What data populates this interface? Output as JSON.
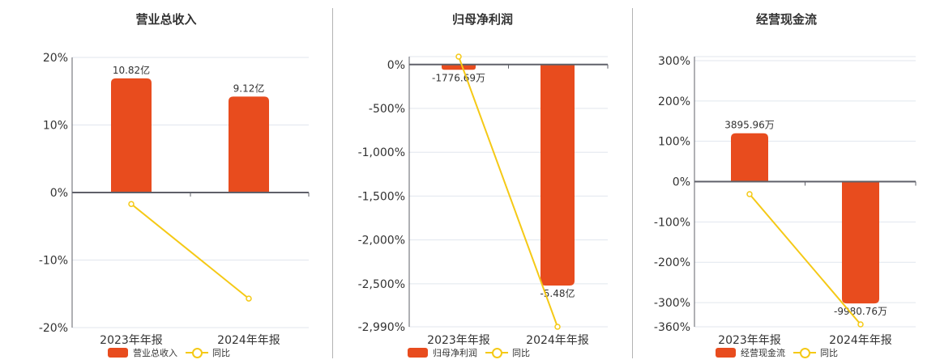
{
  "colors": {
    "bar": "#e84c1e",
    "line": "#f5c916",
    "grid": "#e1e6ee",
    "axis": "#5f6069",
    "divider": "#b3b3b3"
  },
  "legend_line_label": "同比",
  "chart_data": [
    {
      "type": "bar+line",
      "title": "营业总收入",
      "categories": [
        "2023年年报",
        "2024年年报"
      ],
      "series": [
        {
          "name": "营业总收入",
          "type": "bar",
          "values": [
            16.9,
            14.2
          ],
          "data_labels": [
            "10.82亿",
            "9.12亿"
          ],
          "raw_values": [
            "10.82亿",
            "9.12亿"
          ]
        },
        {
          "name": "同比",
          "type": "line",
          "values": [
            -1.7,
            -15.7
          ]
        }
      ],
      "y_ticks": [
        20,
        10,
        0,
        -10,
        -20
      ],
      "y_tick_labels": [
        "20%",
        "10%",
        "0%",
        "-10%",
        "-20%"
      ],
      "ylim": [
        -20,
        20
      ],
      "grid": true,
      "legend_position": "bottom"
    },
    {
      "type": "bar+line",
      "title": "归母净利润",
      "categories": [
        "2023年年报",
        "2024年年报"
      ],
      "series": [
        {
          "name": "归母净利润",
          "type": "bar",
          "values": [
            -60,
            -2520
          ],
          "data_labels": [
            "-1776.69万",
            "-5.48亿"
          ],
          "raw_values": [
            "-1776.69万",
            "-5.48亿"
          ]
        },
        {
          "name": "同比",
          "type": "line",
          "values": [
            90,
            -2990
          ]
        }
      ],
      "y_ticks": [
        0,
        -500,
        -1000,
        -1500,
        -2000,
        -2500,
        -2990
      ],
      "y_tick_labels": [
        "0%",
        "-500%",
        "-1,000%",
        "-1,500%",
        "-2,000%",
        "-2,500%",
        "-2,990%"
      ],
      "ylim": [
        -2990,
        90
      ],
      "grid": true,
      "legend_position": "bottom"
    },
    {
      "type": "bar+line",
      "title": "经营现金流",
      "categories": [
        "2023年年报",
        "2024年年报"
      ],
      "series": [
        {
          "name": "经营现金流",
          "type": "bar",
          "values": [
            120,
            -302
          ],
          "data_labels": [
            "3895.96万",
            "-9980.76万"
          ],
          "raw_values": [
            "3895.96万",
            "-9980.76万"
          ]
        },
        {
          "name": "同比",
          "type": "line",
          "values": [
            -31,
            -354
          ]
        }
      ],
      "y_ticks": [
        300,
        200,
        100,
        0,
        -100,
        -200,
        -300,
        -360
      ],
      "y_tick_labels": [
        "300%",
        "200%",
        "100%",
        "0%",
        "-100%",
        "-200%",
        "-300%",
        "-360%"
      ],
      "ylim": [
        -360,
        310
      ],
      "grid": true,
      "legend_position": "bottom"
    }
  ]
}
